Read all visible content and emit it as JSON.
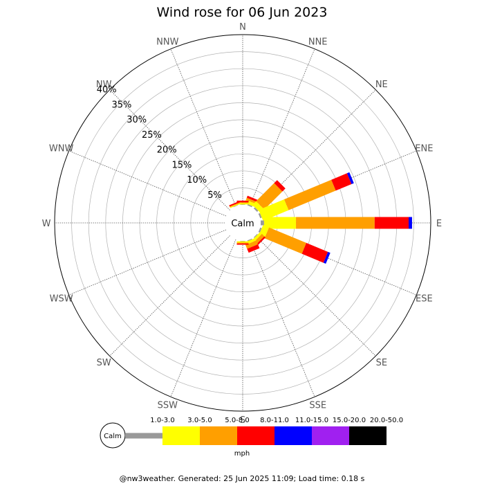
{
  "chart_data": {
    "type": "wind-rose",
    "title": "Wind rose for 06 Jun 2023",
    "directions": [
      "N",
      "NNE",
      "NE",
      "ENE",
      "E",
      "ESE",
      "SE",
      "SSE",
      "S",
      "SSW",
      "SW",
      "WSW",
      "W",
      "WNW",
      "NW",
      "NNW"
    ],
    "radial_ticks": [
      "5%",
      "10%",
      "15%",
      "20%",
      "25%",
      "30%",
      "35%",
      "40%"
    ],
    "radial_max": 40,
    "calm_label": "Calm",
    "unit": "mph",
    "speed_bins": [
      {
        "label": "1.0-3.0",
        "color": "#999999"
      },
      {
        "label": "3.0-5.0",
        "color": "#ffff00"
      },
      {
        "label": "5.0-8.0",
        "color": "#ff9f00"
      },
      {
        "label": "8.0-11.0",
        "color": "#ff0000"
      },
      {
        "label": "11.0-15.0",
        "color": "#0000ff"
      },
      {
        "label": "15.0-20.0",
        "color": "#a020f0"
      },
      {
        "label": "20.0-50.0",
        "color": "#000000"
      }
    ],
    "series": [
      {
        "direction": "NNE",
        "values": [
          0.3,
          0.8,
          0.5,
          0.5,
          0,
          0,
          0
        ]
      },
      {
        "direction": "NE",
        "values": [
          0.4,
          1.2,
          6.0,
          1.0,
          0,
          0,
          0
        ]
      },
      {
        "direction": "ENE",
        "values": [
          0.4,
          6.5,
          12.0,
          4.0,
          0.6,
          0,
          0
        ]
      },
      {
        "direction": "E",
        "values": [
          0.8,
          7.5,
          18.5,
          8.0,
          0.8,
          0,
          0
        ]
      },
      {
        "direction": "ESE",
        "values": [
          0.4,
          1.5,
          9.5,
          5.5,
          0.6,
          0,
          0
        ]
      },
      {
        "direction": "SE",
        "values": [
          0.2,
          0.6,
          0.8,
          0.4,
          0,
          0,
          0
        ]
      },
      {
        "direction": "SSE",
        "values": [
          0.2,
          0.6,
          1.0,
          1.0,
          0,
          0,
          0
        ]
      },
      {
        "direction": "S",
        "values": [
          0.1,
          0.3,
          0.2,
          0.3,
          0,
          0,
          0
        ]
      },
      {
        "direction": "N",
        "values": [
          0.1,
          0.3,
          0.2,
          0.4,
          0,
          0,
          0
        ]
      },
      {
        "direction": "NNW",
        "values": [
          0.1,
          0.2,
          0.2,
          0.3,
          0,
          0,
          0
        ]
      }
    ]
  },
  "footer": "@nw3weather. Generated: 25 Jun 2025 11:09; Load time: 0.18 s"
}
